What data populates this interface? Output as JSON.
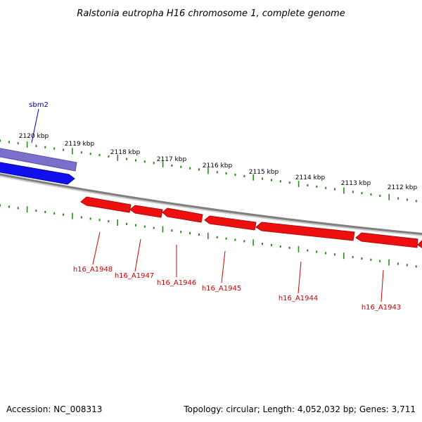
{
  "title": "Ralstonia eutropha H16 chromosome 1, complete genome",
  "footer": {
    "accession": "Accession: NC_008313",
    "summary": "Topology: circular; Length: 4,052,032 bp; Genes: 3,711"
  },
  "colors": {
    "backbone": "#808080",
    "tick": "#2a8a1e",
    "forward_gene": "#1010ee",
    "forward_gene_faded": "#7a70cc",
    "reverse_gene": "#ee1010",
    "forward_label": "#0000cc",
    "reverse_label": "#cc0000"
  },
  "scale": {
    "unit": "kbp",
    "labels": [
      "2120 kbp",
      "2119 kbp",
      "2118 kbp",
      "2117 kbp",
      "2116 kbp",
      "2115 kbp",
      "2114 kbp",
      "2113 kbp",
      "2112 kbp"
    ]
  },
  "forward_features": [
    {
      "label": "sbm2"
    }
  ],
  "reverse_features": [
    {
      "label": "h16_A1948"
    },
    {
      "label": "h16_A1947"
    },
    {
      "label": "h16_A1946"
    },
    {
      "label": "h16_A1945"
    },
    {
      "label": "h16_A1944"
    },
    {
      "label": "h16_A1943"
    }
  ]
}
